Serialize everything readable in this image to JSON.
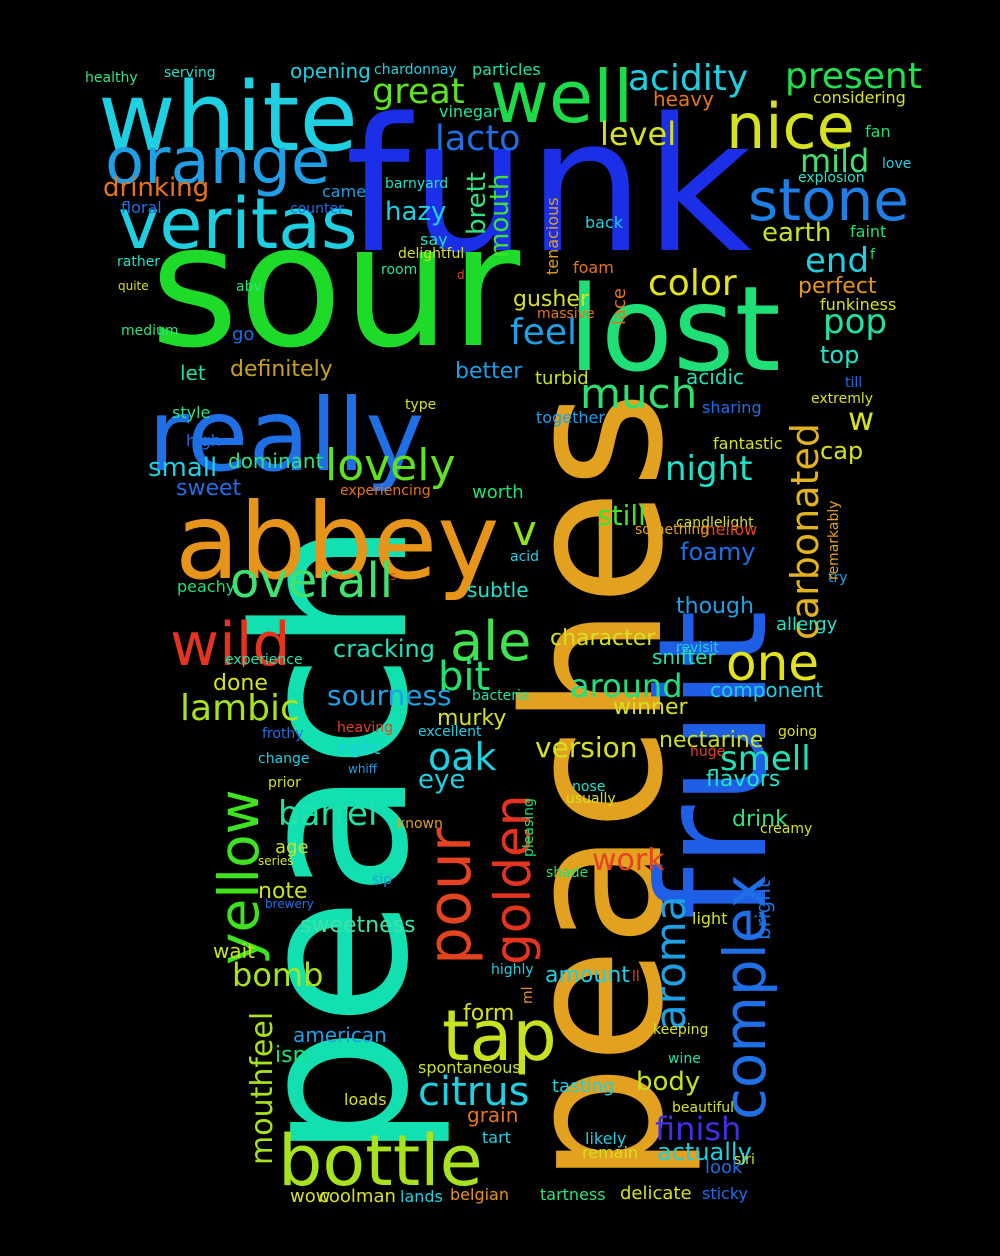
{
  "palette": {
    "background": "#000000",
    "cyan": "#1fcfe2",
    "blue": "#1b3fe6",
    "green": "#1edb2a",
    "teal": "#12e0b0",
    "orange": "#e6951a",
    "amber": "#e2a21f",
    "red": "#e4331f",
    "yellow": "#d6e11f",
    "lime": "#a8e21f",
    "mid_blue": "#1f6fe6",
    "spring": "#1fe076"
  },
  "words": [
    {
      "text": "funk",
      "color": "#1b2fe8"
    },
    {
      "text": "sour",
      "color": "#1edb2a"
    },
    {
      "text": "peach",
      "color": "#12e0b0"
    },
    {
      "text": "peaches",
      "color": "#e2a21f"
    },
    {
      "text": "fruit",
      "color": "#1f5fe6"
    },
    {
      "text": "white",
      "color": "#1fcfe2"
    },
    {
      "text": "abbey",
      "color": "#e6951a"
    },
    {
      "text": "really",
      "color": "#1f6fe6"
    },
    {
      "text": "lost",
      "color": "#1fe076"
    },
    {
      "text": "veritas",
      "color": "#1fcfe2"
    },
    {
      "text": "orange",
      "color": "#1f9fe6"
    },
    {
      "text": "well",
      "color": "#1edb4a"
    },
    {
      "text": "nice",
      "color": "#d6e11f"
    },
    {
      "text": "bottle",
      "color": "#a8e21f"
    },
    {
      "text": "tap",
      "color": "#c8e21f"
    },
    {
      "text": "wild",
      "color": "#e4331f"
    },
    {
      "text": "pour",
      "color": "#e4431f"
    },
    {
      "text": "stone",
      "color": "#1f7fe6"
    },
    {
      "text": "complex",
      "color": "#1f6fe6"
    },
    {
      "text": "yellow",
      "color": "#3fe21f"
    },
    {
      "text": "golden",
      "color": "#e4331f"
    },
    {
      "text": "overall",
      "color": "#3fe26f"
    },
    {
      "text": "lovely",
      "color": "#5fe21f"
    },
    {
      "text": "ale",
      "color": "#3fe24f"
    },
    {
      "text": "carbonated",
      "color": "#e2b21f"
    },
    {
      "text": "one",
      "color": "#e2e21f"
    },
    {
      "text": "acidity",
      "color": "#1fcfe2"
    },
    {
      "text": "present",
      "color": "#1fe24f"
    },
    {
      "text": "great",
      "color": "#5fe21f"
    },
    {
      "text": "much",
      "color": "#2fe26f"
    },
    {
      "text": "color",
      "color": "#e2e21f"
    },
    {
      "text": "lacto",
      "color": "#1f6fe6"
    },
    {
      "text": "level",
      "color": "#d6e11f"
    },
    {
      "text": "mild",
      "color": "#3fe26f"
    },
    {
      "text": "drinking",
      "color": "#e6751a"
    },
    {
      "text": "earth",
      "color": "#c8e21f"
    },
    {
      "text": "end",
      "color": "#1fcfe2"
    },
    {
      "text": "pop",
      "color": "#1fe2a8"
    },
    {
      "text": "feel",
      "color": "#1f9fe6"
    },
    {
      "text": "hazy",
      "color": "#1fcfe2"
    },
    {
      "text": "mouth",
      "color": "#3fe22f"
    },
    {
      "text": "brett",
      "color": "#2fe27f"
    },
    {
      "text": "perfect",
      "color": "#e6951a"
    },
    {
      "text": "night",
      "color": "#1fe2c8"
    },
    {
      "text": "bit",
      "color": "#1fe26f"
    },
    {
      "text": "lambic",
      "color": "#a8e21f"
    },
    {
      "text": "aroma",
      "color": "#1f9fe6"
    },
    {
      "text": "bomb",
      "color": "#a8e21f"
    },
    {
      "text": "citrus",
      "color": "#1fcfe2"
    },
    {
      "text": "smell",
      "color": "#1fe2b8"
    },
    {
      "text": "barrel",
      "color": "#1fe2a8"
    },
    {
      "text": "oak",
      "color": "#1fcfe2"
    },
    {
      "text": "finish",
      "color": "#3f2fe6"
    },
    {
      "text": "mouthfeel",
      "color": "#a8e21f"
    },
    {
      "text": "cracking",
      "color": "#1fe2b8"
    },
    {
      "text": "sourness",
      "color": "#1f9fe6"
    },
    {
      "text": "around",
      "color": "#1fe27f"
    },
    {
      "text": "version",
      "color": "#d6e11f"
    },
    {
      "text": "character",
      "color": "#d6e11f"
    },
    {
      "text": "work",
      "color": "#e4431f"
    },
    {
      "text": "still",
      "color": "#3fe22f"
    },
    {
      "text": "small",
      "color": "#1fcfe2"
    },
    {
      "text": "v",
      "color": "#8fe21f"
    },
    {
      "text": "w",
      "color": "#d6e11f"
    },
    {
      "text": "dominant",
      "color": "#2fe27f"
    },
    {
      "text": "definitely",
      "color": "#c8a21f"
    },
    {
      "text": "better",
      "color": "#1f9fe6"
    },
    {
      "text": "cap",
      "color": "#d6e11f"
    },
    {
      "text": "top",
      "color": "#1fe2c8"
    },
    {
      "text": "sweet",
      "color": "#1f6fe6"
    },
    {
      "text": "sweetness",
      "color": "#3fe2a8"
    },
    {
      "text": "body",
      "color": "#c8e21f"
    },
    {
      "text": "actually",
      "color": "#1fcfe2"
    },
    {
      "text": "eye",
      "color": "#1fcfe2"
    },
    {
      "text": "note",
      "color": "#c8e21f"
    },
    {
      "text": "gusher",
      "color": "#d6e11f"
    },
    {
      "text": "foamy",
      "color": "#1f6fe6"
    },
    {
      "text": "though",
      "color": "#1f9fe6"
    },
    {
      "text": "flavors",
      "color": "#1fe2c8"
    },
    {
      "text": "drink",
      "color": "#2fe27f"
    },
    {
      "text": "amount",
      "color": "#1fcfe2"
    },
    {
      "text": "form",
      "color": "#d6e11f"
    },
    {
      "text": "isn",
      "color": "#1fe26f"
    },
    {
      "text": "murky",
      "color": "#d6e11f"
    },
    {
      "text": "done",
      "color": "#d6e11f"
    },
    {
      "text": "winner",
      "color": "#d6e11f"
    },
    {
      "text": "component",
      "color": "#1fcfe2"
    },
    {
      "text": "nectarine",
      "color": "#c8e21f"
    },
    {
      "text": "snifter",
      "color": "#1fe2a8"
    },
    {
      "text": "allergy",
      "color": "#1fe2c8"
    },
    {
      "text": "acidic",
      "color": "#1fe2b8"
    },
    {
      "text": "turbid",
      "color": "#c8e21f"
    },
    {
      "text": "wait",
      "color": "#c8e21f"
    },
    {
      "text": "subtle",
      "color": "#1fe2c8"
    },
    {
      "text": "worth",
      "color": "#1fe26f"
    },
    {
      "text": "age",
      "color": "#c8e21f"
    },
    {
      "text": "right",
      "color": "#1fcfe2"
    },
    {
      "text": "american",
      "color": "#1f9fe6"
    },
    {
      "text": "bright",
      "color": "#1f6fe6"
    },
    {
      "text": "tasting",
      "color": "#1fcfe2"
    },
    {
      "text": "grain",
      "color": "#e6751a"
    },
    {
      "text": "tart",
      "color": "#1fcfe2"
    },
    {
      "text": "likely",
      "color": "#1fcfe2"
    },
    {
      "text": "remain",
      "color": "#d6e11f"
    },
    {
      "text": "look",
      "color": "#1f6fe6"
    },
    {
      "text": "sticky",
      "color": "#1f6fe6"
    },
    {
      "text": "delicate",
      "color": "#d6e11f"
    },
    {
      "text": "tartness",
      "color": "#2fe27f"
    },
    {
      "text": "belgian",
      "color": "#e6951a"
    },
    {
      "text": "lands",
      "color": "#1fcfe2"
    },
    {
      "text": "coolman",
      "color": "#d6e11f"
    },
    {
      "text": "wow",
      "color": "#d6e11f"
    },
    {
      "text": "loads",
      "color": "#d6e11f"
    },
    {
      "text": "spontaneous",
      "color": "#c8e21f"
    },
    {
      "text": "keeping",
      "color": "#d6e11f"
    },
    {
      "text": "wine",
      "color": "#1fe2a8"
    },
    {
      "text": "beautiful",
      "color": "#d6e11f"
    },
    {
      "text": "light",
      "color": "#d6e11f"
    },
    {
      "text": "fantastic",
      "color": "#d6e11f"
    },
    {
      "text": "candlelight",
      "color": "#d6e11f"
    },
    {
      "text": "sharing",
      "color": "#1f6fe6"
    },
    {
      "text": "together",
      "color": "#1f9fe6"
    },
    {
      "text": "style",
      "color": "#2fe27f"
    },
    {
      "text": "let",
      "color": "#1fe2a8"
    },
    {
      "text": "medium",
      "color": "#2fe27f"
    },
    {
      "text": "go",
      "color": "#1f6fe6"
    },
    {
      "text": "high",
      "color": "#1f6fe6"
    },
    {
      "text": "peachy",
      "color": "#1fe26f"
    },
    {
      "text": "foam",
      "color": "#e6751a"
    },
    {
      "text": "lace",
      "color": "#e6751a"
    },
    {
      "text": "massive",
      "color": "#e6751a"
    },
    {
      "text": "room",
      "color": "#1fe2a8"
    },
    {
      "text": "delightful",
      "color": "#d6e11f"
    },
    {
      "text": "say",
      "color": "#1fe2c8"
    },
    {
      "text": "back",
      "color": "#1fcfe2"
    },
    {
      "text": "tenacious",
      "color": "#e2a21f"
    },
    {
      "text": "funkiness",
      "color": "#d6e11f"
    },
    {
      "text": "explosion",
      "color": "#1fe2c8"
    },
    {
      "text": "fan",
      "color": "#1fe26f"
    },
    {
      "text": "love",
      "color": "#1fcfe2"
    },
    {
      "text": "faint",
      "color": "#1fe26f"
    },
    {
      "text": "heavy",
      "color": "#e6751a"
    },
    {
      "text": "considering",
      "color": "#d6e11f"
    },
    {
      "text": "opening",
      "color": "#1fcfe2"
    },
    {
      "text": "particles",
      "color": "#1fe2a8"
    },
    {
      "text": "vinegar",
      "color": "#1fe2a8"
    },
    {
      "text": "chardonnay",
      "color": "#1fcfe2"
    },
    {
      "text": "healthy",
      "color": "#2fe27f"
    },
    {
      "text": "serving",
      "color": "#1fe2c8"
    },
    {
      "text": "barnyard",
      "color": "#1fe2c8"
    },
    {
      "text": "came",
      "color": "#1f9fe6"
    },
    {
      "text": "counter",
      "color": "#1f6fe6"
    },
    {
      "text": "floral",
      "color": "#1f6fe6"
    },
    {
      "text": "rather",
      "color": "#1fe2c8"
    },
    {
      "text": "abv",
      "color": "#2fe27f"
    },
    {
      "text": "quite",
      "color": "#d6e11f"
    },
    {
      "text": "mellow",
      "color": "#e4431f"
    },
    {
      "text": "something",
      "color": "#e2a21f"
    },
    {
      "text": "experience",
      "color": "#1fe2a8"
    },
    {
      "text": "experiencing",
      "color": "#e6751a"
    },
    {
      "text": "heaving",
      "color": "#e4431f"
    },
    {
      "text": "excellent",
      "color": "#1fcfe2"
    },
    {
      "text": "frothy",
      "color": "#1f6fe6"
    },
    {
      "text": "change",
      "color": "#1fcfe2"
    },
    {
      "text": "prior",
      "color": "#d6e11f"
    },
    {
      "text": "whiff",
      "color": "#1f9fe6"
    },
    {
      "text": "usually",
      "color": "#d6e11f"
    },
    {
      "text": "nose",
      "color": "#1fe2c8"
    },
    {
      "text": "creamy",
      "color": "#d6e11f"
    },
    {
      "text": "going",
      "color": "#d6e11f"
    },
    {
      "text": "huge",
      "color": "#e4431f"
    },
    {
      "text": "revisit",
      "color": "#1fcfe2"
    },
    {
      "text": "try",
      "color": "#1f9fe6"
    },
    {
      "text": "extremly",
      "color": "#d6e11f"
    },
    {
      "text": "till",
      "color": "#1f6fe6"
    },
    {
      "text": "remarkably",
      "color": "#e2a21f"
    },
    {
      "text": "sip",
      "color": "#1f9fe6"
    },
    {
      "text": "shade",
      "color": "#1fe26f"
    },
    {
      "text": "pleasing",
      "color": "#1fe26f"
    },
    {
      "text": "highly",
      "color": "#1fcfe2"
    },
    {
      "text": "bacteria",
      "color": "#1fe2a8"
    },
    {
      "text": "acid",
      "color": "#1fcfe2"
    },
    {
      "text": "type",
      "color": "#d6e11f"
    },
    {
      "text": "known",
      "color": "#e2a21f"
    },
    {
      "text": "brewery",
      "color": "#1f6fe6"
    },
    {
      "text": "series",
      "color": "#d6e11f"
    },
    {
      "text": "siri",
      "color": "#d6e11f"
    },
    {
      "text": "ml",
      "color": "#e6951a"
    },
    {
      "text": "ll",
      "color": "#e4431f"
    },
    {
      "text": "f",
      "color": "#1fe26f"
    },
    {
      "text": "s",
      "color": "#e4431f"
    },
    {
      "text": "d",
      "color": "#e4431f"
    }
  ]
}
